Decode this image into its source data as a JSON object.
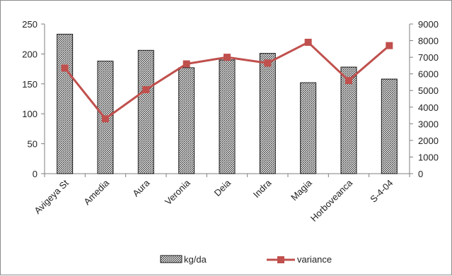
{
  "chart_data": {
    "type": "bar",
    "categories": [
      "Avigeya St",
      "Amedia",
      "Aura",
      "Veronia",
      "Deia",
      "Indra",
      "Magia",
      "Horboveanca",
      "S-4-04"
    ],
    "series": [
      {
        "name": "kg/da",
        "type": "bar",
        "axis": "left",
        "values": [
          233,
          188,
          206,
          177,
          190,
          201,
          152,
          178,
          158
        ]
      },
      {
        "name": "variance",
        "type": "line",
        "axis": "right",
        "values": [
          6350,
          3300,
          5050,
          6600,
          7000,
          6650,
          7900,
          5600,
          7700
        ]
      }
    ],
    "y_left": {
      "min": 0,
      "max": 250,
      "ticks": [
        "0",
        "50",
        "100",
        "150",
        "200",
        "250"
      ]
    },
    "y_right": {
      "min": 0,
      "max": 9000,
      "ticks": [
        "0",
        "1000",
        "2000",
        "3000",
        "4000",
        "5000",
        "6000",
        "7000",
        "8000",
        "9000"
      ]
    },
    "grid": false,
    "legend": "bottom",
    "colors": {
      "bar_fill": "#555555",
      "bar_stroke": "#1a1a1a",
      "line": "#c0504d",
      "axis": "#7f7f7f"
    }
  }
}
